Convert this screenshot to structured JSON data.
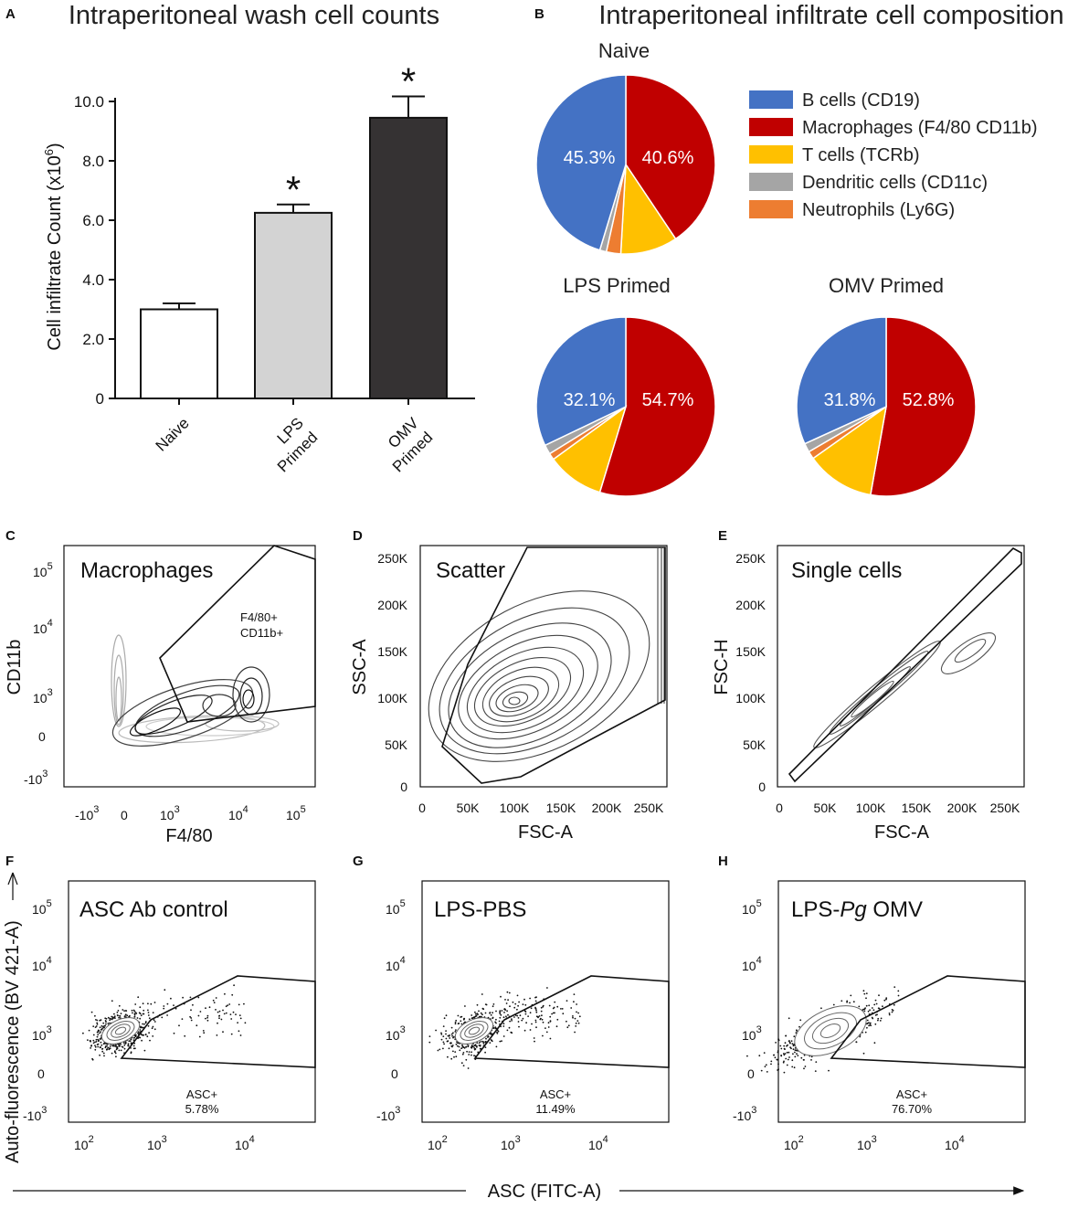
{
  "chart_data": [
    {
      "panel": "A",
      "type": "bar",
      "title": "Intraperitoneal wash cell counts",
      "ylabel": "Cell infiltrate Count (x10⁶)",
      "ylabel_base": "Cell infiltrate Count (x10",
      "ylabel_exp": "6",
      "ylabel_close": ")",
      "ylim": [
        0,
        10
      ],
      "yticks": [
        "0",
        "2.0",
        "4.0",
        "6.0",
        "8.0",
        "10.0"
      ],
      "ytick_values": [
        0,
        2,
        4,
        6,
        8,
        10
      ],
      "categories": [
        "Naive",
        "LPS Primed",
        "OMV Primed"
      ],
      "category_lines": [
        [
          "Naive"
        ],
        [
          "LPS",
          "Primed"
        ],
        [
          "OMV",
          "Primed"
        ]
      ],
      "values": [
        3.0,
        6.25,
        9.45
      ],
      "errors": [
        0.2,
        0.28,
        0.72
      ],
      "colors": [
        "#ffffff",
        "#d3d3d3",
        "#353233"
      ],
      "significance": [
        "",
        "*",
        "*"
      ]
    },
    {
      "panel": "B",
      "type": "pie",
      "title": "Intraperitoneal infiltrate cell composition",
      "legend": [
        {
          "label": "B cells (CD19)",
          "color": "#4472c4"
        },
        {
          "label": "Macrophages (F4/80 CD11b)",
          "color": "#c00000"
        },
        {
          "label": "T cells (TCRb)",
          "color": "#ffc000"
        },
        {
          "label": "Dendritic cells (CD11c)",
          "color": "#a5a5a5"
        },
        {
          "label": "Neutrophils (Ly6G)",
          "color": "#ed7d31"
        }
      ],
      "pies": [
        {
          "name": "Naive",
          "values": [
            45.3,
            40.6,
            10.3,
            1.2,
            2.6
          ],
          "labels": [
            "45.3%",
            "40.6%"
          ]
        },
        {
          "name": "LPS Primed",
          "values": [
            32.1,
            54.7,
            10.3,
            1.7,
            1.2
          ],
          "labels": [
            "32.1%",
            "54.7%"
          ]
        },
        {
          "name": "OMV Primed",
          "values": [
            31.8,
            52.8,
            12.4,
            1.6,
            1.4
          ],
          "labels": [
            "31.8%",
            "52.8%"
          ]
        }
      ]
    },
    {
      "panel": "C",
      "type": "scatter",
      "title": "Macrophages",
      "xlabel": "F4/80",
      "ylabel": "CD11b",
      "axis": "logicle",
      "gate_label": [
        "F4/80+",
        "CD11b+"
      ]
    },
    {
      "panel": "D",
      "type": "scatter",
      "title": "Scatter",
      "xlabel": "FSC-A",
      "ylabel": "SSC-A",
      "xticks": [
        "0",
        "50K",
        "100K",
        "150K",
        "200K",
        "250K"
      ],
      "yticks": [
        "0",
        "50K",
        "100K",
        "150K",
        "200K",
        "250K"
      ]
    },
    {
      "panel": "E",
      "type": "scatter",
      "title": "Single cells",
      "xlabel": "FSC-A",
      "ylabel": "FSC-H",
      "xticks": [
        "0",
        "50K",
        "100K",
        "150K",
        "200K",
        "250K"
      ],
      "yticks": [
        "0",
        "50K",
        "100K",
        "150K",
        "200K",
        "250K"
      ]
    },
    {
      "panel": "F",
      "type": "scatter",
      "title": "ASC Ab control",
      "gate_label": "ASC+",
      "gate_value": "5.78%",
      "asc_fraction": 5.78
    },
    {
      "panel": "G",
      "type": "scatter",
      "title": "LPS-PBS",
      "gate_label": "ASC+",
      "gate_value": "11.49%",
      "asc_fraction": 11.49
    },
    {
      "panel": "H",
      "type": "scatter",
      "title_pre": "LPS-",
      "title_italic": "Pg",
      "title_post": " OMV",
      "gate_label": "ASC+",
      "gate_value": "76.70%",
      "asc_fraction": 76.7
    }
  ],
  "panel_letters": [
    "A",
    "B",
    "C",
    "D",
    "E",
    "F",
    "G",
    "H"
  ],
  "shared_axes": {
    "x_label": "ASC (FITC-A)",
    "y_label": "Auto-fluorescence (BV 421-A)",
    "log_tick_base": "10",
    "log_ticks_y": [
      "5",
      "4",
      "3",
      "3"
    ],
    "log_ticks_x": [
      "2",
      "3",
      "4"
    ],
    "zero": "0",
    "neg": "-10",
    "c_x_ticks": [
      "3",
      "3",
      "4",
      "5"
    ]
  }
}
